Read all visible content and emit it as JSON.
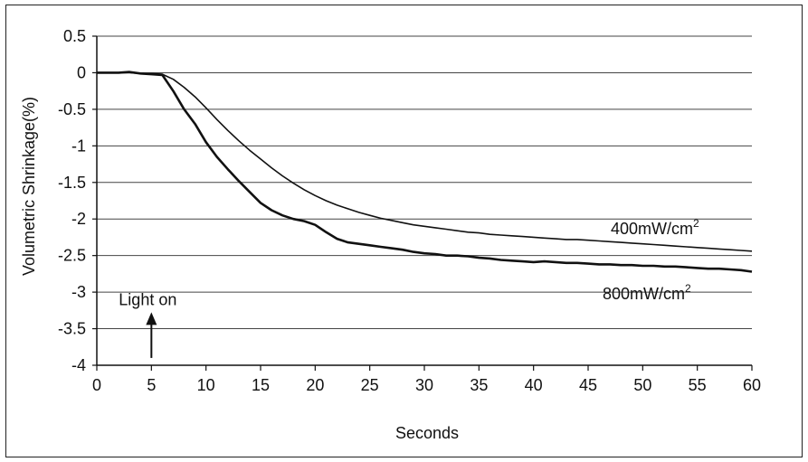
{
  "chart_data": {
    "type": "line",
    "title": "",
    "xlabel": "Seconds",
    "ylabel": "Volumetric Shrinkage(%)",
    "xlim": [
      0,
      60
    ],
    "ylim": [
      -4,
      0.5
    ],
    "x_ticks": [
      "0",
      "5",
      "10",
      "15",
      "20",
      "25",
      "30",
      "35",
      "40",
      "45",
      "50",
      "55",
      "60"
    ],
    "y_ticks": [
      "0.5",
      "0",
      "-0.5",
      "-1",
      "-1.5",
      "-2",
      "-2.5",
      "-3",
      "-3.5",
      "-4"
    ],
    "grid": "horizontal",
    "series": [
      {
        "name": "400mW/cm",
        "label_text": "400mW/cm",
        "label_sup": "2",
        "x": [
          0,
          1,
          2,
          3,
          4,
          5,
          6,
          7,
          8,
          9,
          10,
          11,
          12,
          13,
          14,
          15,
          16,
          17,
          18,
          19,
          20,
          21,
          22,
          23,
          24,
          25,
          26,
          27,
          28,
          29,
          30,
          31,
          32,
          33,
          34,
          35,
          36,
          37,
          38,
          39,
          40,
          41,
          42,
          43,
          44,
          45,
          46,
          47,
          48,
          49,
          50,
          51,
          52,
          53,
          54,
          55,
          56,
          57,
          58,
          59,
          60
        ],
        "values": [
          0.0,
          0.0,
          0.0,
          0.0,
          -0.01,
          -0.01,
          -0.02,
          -0.09,
          -0.2,
          -0.33,
          -0.48,
          -0.64,
          -0.79,
          -0.93,
          -1.06,
          -1.18,
          -1.3,
          -1.41,
          -1.51,
          -1.6,
          -1.68,
          -1.75,
          -1.81,
          -1.86,
          -1.91,
          -1.95,
          -1.99,
          -2.02,
          -2.05,
          -2.08,
          -2.1,
          -2.12,
          -2.14,
          -2.16,
          -2.18,
          -2.19,
          -2.21,
          -2.22,
          -2.23,
          -2.24,
          -2.25,
          -2.26,
          -2.27,
          -2.28,
          -2.28,
          -2.29,
          -2.3,
          -2.31,
          -2.32,
          -2.33,
          -2.34,
          -2.35,
          -2.36,
          -2.37,
          -2.38,
          -2.39,
          -2.4,
          -2.41,
          -2.42,
          -2.43,
          -2.44
        ]
      },
      {
        "name": "800mW/cm",
        "label_text": "800mW/cm",
        "label_sup": "2",
        "x": [
          0,
          1,
          2,
          3,
          4,
          5,
          6,
          7,
          8,
          9,
          10,
          11,
          12,
          13,
          14,
          15,
          16,
          17,
          18,
          19,
          20,
          21,
          22,
          23,
          24,
          25,
          26,
          27,
          28,
          29,
          30,
          31,
          32,
          33,
          34,
          35,
          36,
          37,
          38,
          39,
          40,
          41,
          42,
          43,
          44,
          45,
          46,
          47,
          48,
          49,
          50,
          51,
          52,
          53,
          54,
          55,
          56,
          57,
          58,
          59,
          60
        ],
        "values": [
          0.0,
          0.0,
          0.0,
          0.01,
          -0.01,
          -0.02,
          -0.03,
          -0.25,
          -0.5,
          -0.7,
          -0.95,
          -1.15,
          -1.32,
          -1.48,
          -1.63,
          -1.78,
          -1.88,
          -1.95,
          -2.0,
          -2.03,
          -2.08,
          -2.18,
          -2.27,
          -2.32,
          -2.34,
          -2.36,
          -2.38,
          -2.4,
          -2.42,
          -2.45,
          -2.47,
          -2.48,
          -2.5,
          -2.5,
          -2.51,
          -2.53,
          -2.54,
          -2.56,
          -2.57,
          -2.58,
          -2.59,
          -2.58,
          -2.59,
          -2.6,
          -2.6,
          -2.61,
          -2.62,
          -2.62,
          -2.63,
          -2.63,
          -2.64,
          -2.64,
          -2.65,
          -2.65,
          -2.66,
          -2.67,
          -2.68,
          -2.68,
          -2.69,
          -2.7,
          -2.72
        ]
      }
    ],
    "annotations": [
      {
        "text": "Light on",
        "x": 5,
        "arrow_from_y": -3.9,
        "arrow_to_y": -3.3
      }
    ]
  }
}
